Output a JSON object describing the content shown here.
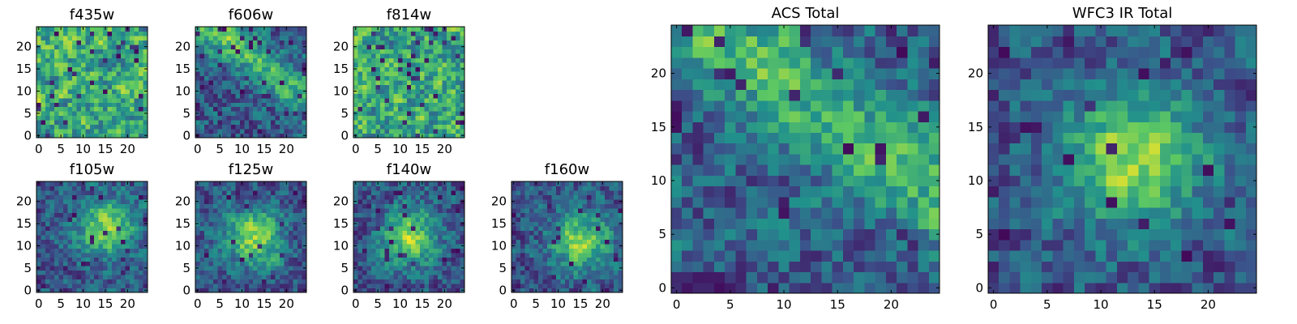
{
  "figure": {
    "background": "#ffffff",
    "colormap": "viridis",
    "colormap_stops": [
      "#440154",
      "#3b528b",
      "#21918c",
      "#5ec962",
      "#fde725"
    ]
  },
  "chart_data": [
    {
      "id": "f435w",
      "type": "heatmap",
      "title": "f435w",
      "grid_size": 25,
      "xlim": [
        -0.5,
        24.5
      ],
      "ylim": [
        -0.5,
        24.5
      ],
      "xticks": [
        0,
        5,
        10,
        15,
        20
      ],
      "yticks": [
        0,
        5,
        10,
        15,
        20
      ],
      "texture": "noise",
      "seed": 11,
      "dark_fraction": 0.05
    },
    {
      "id": "f606w",
      "type": "heatmap",
      "title": "f606w",
      "grid_size": 25,
      "xlim": [
        -0.5,
        24.5
      ],
      "ylim": [
        -0.5,
        24.5
      ],
      "xticks": [
        0,
        5,
        10,
        15,
        20
      ],
      "yticks": [
        0,
        5,
        10,
        15,
        20
      ],
      "texture": "diagonal-band",
      "seed": 23,
      "dark_fraction": 0.08
    },
    {
      "id": "f814w",
      "type": "heatmap",
      "title": "f814w",
      "grid_size": 25,
      "xlim": [
        -0.5,
        24.5
      ],
      "ylim": [
        -0.5,
        24.5
      ],
      "xticks": [
        0,
        5,
        10,
        15,
        20
      ],
      "yticks": [
        0,
        5,
        10,
        15,
        20
      ],
      "texture": "noise",
      "seed": 37,
      "dark_fraction": 0.07
    },
    {
      "id": "f105w",
      "type": "heatmap",
      "title": "f105w",
      "grid_size": 25,
      "xlim": [
        -0.5,
        24.5
      ],
      "ylim": [
        -0.5,
        24.5
      ],
      "xticks": [
        0,
        5,
        10,
        15,
        20
      ],
      "yticks": [
        0,
        5,
        10,
        15,
        20
      ],
      "texture": "central-blob",
      "blob_center": [
        15,
        14
      ],
      "seed": 41,
      "dark_fraction": 0.05
    },
    {
      "id": "f125w",
      "type": "heatmap",
      "title": "f125w",
      "grid_size": 25,
      "xlim": [
        -0.5,
        24.5
      ],
      "ylim": [
        -0.5,
        24.5
      ],
      "xticks": [
        0,
        5,
        10,
        15,
        20
      ],
      "yticks": [
        0,
        5,
        10,
        15,
        20
      ],
      "texture": "central-blob",
      "blob_center": [
        13,
        12
      ],
      "seed": 53,
      "dark_fraction": 0.04
    },
    {
      "id": "f140w",
      "type": "heatmap",
      "title": "f140w",
      "grid_size": 25,
      "xlim": [
        -0.5,
        24.5
      ],
      "ylim": [
        -0.5,
        24.5
      ],
      "xticks": [
        0,
        5,
        10,
        15,
        20
      ],
      "yticks": [
        0,
        5,
        10,
        15,
        20
      ],
      "texture": "central-blob",
      "blob_center": [
        12,
        12
      ],
      "seed": 67,
      "dark_fraction": 0.04
    },
    {
      "id": "f160w",
      "type": "heatmap",
      "title": "f160w",
      "grid_size": 25,
      "xlim": [
        -0.5,
        24.5
      ],
      "ylim": [
        -0.5,
        24.5
      ],
      "xticks": [
        0,
        5,
        10,
        15,
        20
      ],
      "yticks": [
        0,
        5,
        10,
        15,
        20
      ],
      "texture": "central-blob",
      "blob_center": [
        15,
        11
      ],
      "seed": 79,
      "dark_fraction": 0.05
    },
    {
      "id": "acs-total",
      "type": "heatmap",
      "title": "ACS Total",
      "grid_size": 25,
      "xlim": [
        -0.5,
        24.5
      ],
      "ylim": [
        -0.5,
        24.5
      ],
      "xticks": [
        0,
        5,
        10,
        15,
        20
      ],
      "yticks": [
        0,
        5,
        10,
        15,
        20
      ],
      "texture": "diagonal-band",
      "seed": 97,
      "dark_fraction": 0.05
    },
    {
      "id": "wfc3-ir-total",
      "type": "heatmap",
      "title": "WFC3 IR Total",
      "grid_size": 25,
      "xlim": [
        -0.5,
        24.5
      ],
      "ylim": [
        -0.5,
        24.5
      ],
      "xticks": [
        0,
        5,
        10,
        15,
        20
      ],
      "yticks": [
        0,
        5,
        10,
        15,
        20
      ],
      "texture": "central-blob",
      "blob_center": [
        13,
        12
      ],
      "seed": 113,
      "dark_fraction": 0.05
    }
  ]
}
